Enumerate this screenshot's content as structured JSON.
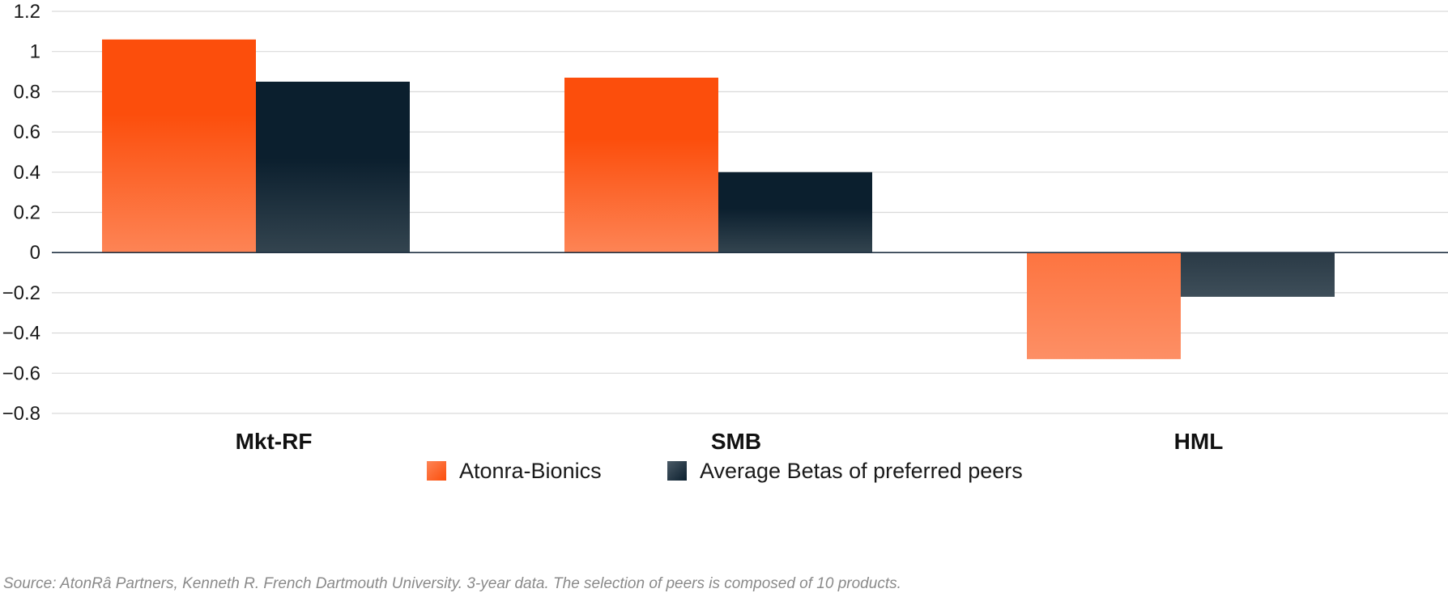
{
  "chart_data": {
    "type": "bar",
    "categories": [
      "Mkt-RF",
      "SMB",
      "HML"
    ],
    "series": [
      {
        "name": "Atonra-Bionics",
        "values": [
          1.06,
          0.87,
          -0.53
        ]
      },
      {
        "name": "Average Betas of preferred peers",
        "values": [
          0.85,
          0.4,
          -0.22
        ]
      }
    ],
    "ylim": [
      -0.8,
      1.2
    ],
    "yticks": [
      1.2,
      1,
      0.8,
      0.6,
      0.4,
      0.2,
      0,
      -0.2,
      -0.4,
      -0.6,
      -0.8
    ],
    "ytick_labels": [
      "1.2",
      "1",
      "0.8",
      "0.6",
      "0.4",
      "0.2",
      "0",
      "−0.2",
      "−0.4",
      "−0.6",
      "−0.8"
    ],
    "grid": true,
    "legend_position": "bottom-center",
    "colors": {
      "Atonra-Bionics": {
        "top": "#fc4e0c",
        "bottom": "#fd8455"
      },
      "Average Betas of preferred peers": {
        "top": "#0b1f2e",
        "bottom": "#33444f"
      },
      "grid": "#d9d9d9",
      "zero_line": "#223344"
    },
    "title": "",
    "xlabel": "",
    "ylabel": ""
  },
  "source_note": "Source: AtonRâ Partners, Kenneth R. French Dartmouth University. 3-year data. The selection of peers is composed of 10 products."
}
